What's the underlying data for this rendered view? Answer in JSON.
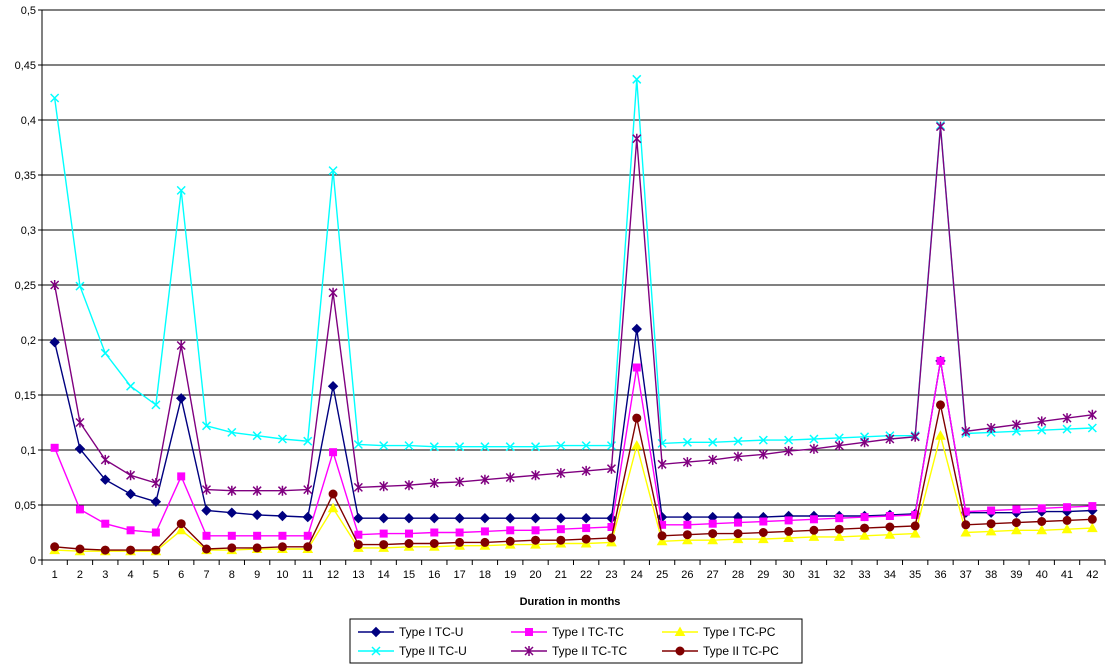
{
  "chart_data": {
    "type": "line",
    "title": "",
    "xlabel": "Duration in months",
    "ylabel": "",
    "ylim": [
      0,
      0.5
    ],
    "yticks": [
      "0",
      "0,05",
      "0,1",
      "0,15",
      "0,2",
      "0,25",
      "0,3",
      "0,35",
      "0,4",
      "0,45",
      "0,5"
    ],
    "categories": [
      "1",
      "2",
      "3",
      "4",
      "5",
      "6",
      "7",
      "8",
      "9",
      "10",
      "11",
      "12",
      "13",
      "14",
      "15",
      "16",
      "17",
      "18",
      "19",
      "20",
      "21",
      "22",
      "23",
      "24",
      "25",
      "26",
      "27",
      "28",
      "29",
      "30",
      "31",
      "32",
      "33",
      "34",
      "35",
      "36",
      "37",
      "38",
      "39",
      "40",
      "41",
      "42"
    ],
    "grid": true,
    "legend_position": "bottom",
    "series": [
      {
        "name": "Type I TC-U",
        "color": "#000080",
        "marker": "diamond",
        "values": [
          0.198,
          0.101,
          0.073,
          0.06,
          0.053,
          0.147,
          0.045,
          0.043,
          0.041,
          0.04,
          0.039,
          0.158,
          0.038,
          0.038,
          0.038,
          0.038,
          0.038,
          0.038,
          0.038,
          0.038,
          0.038,
          0.038,
          0.038,
          0.21,
          0.039,
          0.039,
          0.039,
          0.039,
          0.039,
          0.04,
          0.04,
          0.04,
          0.04,
          0.041,
          0.042,
          0.181,
          0.043,
          0.043,
          0.043,
          0.044,
          0.044,
          0.045
        ]
      },
      {
        "name": "Type I TC-TC",
        "color": "#FF00FF",
        "marker": "square",
        "values": [
          0.102,
          0.046,
          0.033,
          0.027,
          0.025,
          0.076,
          0.022,
          0.022,
          0.022,
          0.022,
          0.022,
          0.098,
          0.023,
          0.024,
          0.024,
          0.025,
          0.025,
          0.026,
          0.027,
          0.027,
          0.028,
          0.029,
          0.03,
          0.175,
          0.032,
          0.032,
          0.033,
          0.034,
          0.035,
          0.036,
          0.037,
          0.038,
          0.039,
          0.04,
          0.041,
          0.181,
          0.044,
          0.045,
          0.046,
          0.047,
          0.048,
          0.049
        ]
      },
      {
        "name": "Type I TC-PC",
        "color": "#FFFF00",
        "marker": "triangle",
        "values": [
          0.009,
          0.008,
          0.008,
          0.008,
          0.008,
          0.027,
          0.009,
          0.009,
          0.01,
          0.01,
          0.01,
          0.047,
          0.011,
          0.011,
          0.012,
          0.012,
          0.013,
          0.013,
          0.014,
          0.014,
          0.015,
          0.015,
          0.016,
          0.104,
          0.017,
          0.018,
          0.018,
          0.019,
          0.019,
          0.02,
          0.021,
          0.021,
          0.022,
          0.023,
          0.024,
          0.113,
          0.025,
          0.026,
          0.027,
          0.027,
          0.028,
          0.029
        ]
      },
      {
        "name": "Type II TC-U",
        "color": "#00FFFF",
        "marker": "x",
        "values": [
          0.42,
          0.249,
          0.188,
          0.158,
          0.141,
          0.336,
          0.122,
          0.116,
          0.113,
          0.11,
          0.108,
          0.354,
          0.105,
          0.104,
          0.104,
          0.103,
          0.103,
          0.103,
          0.103,
          0.103,
          0.104,
          0.104,
          0.104,
          0.437,
          0.106,
          0.107,
          0.107,
          0.108,
          0.109,
          0.109,
          0.11,
          0.111,
          0.112,
          0.113,
          0.113,
          0.395,
          0.115,
          0.116,
          0.117,
          0.118,
          0.119,
          0.12
        ]
      },
      {
        "name": "Type II TC-TC",
        "color": "#800080",
        "marker": "star",
        "values": [
          0.25,
          0.125,
          0.091,
          0.077,
          0.07,
          0.195,
          0.064,
          0.063,
          0.063,
          0.063,
          0.064,
          0.243,
          0.066,
          0.067,
          0.068,
          0.07,
          0.071,
          0.073,
          0.075,
          0.077,
          0.079,
          0.081,
          0.083,
          0.383,
          0.087,
          0.089,
          0.091,
          0.094,
          0.096,
          0.099,
          0.101,
          0.104,
          0.107,
          0.11,
          0.112,
          0.394,
          0.117,
          0.12,
          0.123,
          0.126,
          0.129,
          0.132
        ]
      },
      {
        "name": "Type II TC-PC",
        "color": "#800000",
        "marker": "circle",
        "values": [
          0.012,
          0.01,
          0.009,
          0.009,
          0.009,
          0.033,
          0.01,
          0.011,
          0.011,
          0.012,
          0.012,
          0.06,
          0.014,
          0.014,
          0.015,
          0.015,
          0.016,
          0.016,
          0.017,
          0.018,
          0.018,
          0.019,
          0.02,
          0.129,
          0.022,
          0.023,
          0.024,
          0.024,
          0.025,
          0.026,
          0.027,
          0.028,
          0.029,
          0.03,
          0.031,
          0.141,
          0.032,
          0.033,
          0.034,
          0.035,
          0.036,
          0.037
        ]
      }
    ]
  }
}
